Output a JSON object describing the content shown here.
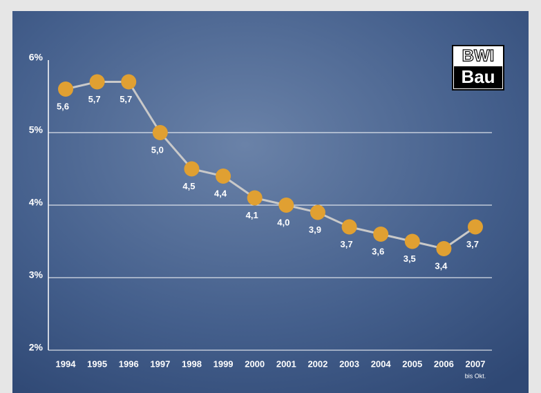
{
  "chart_data": {
    "type": "line",
    "categories": [
      "1994",
      "1995",
      "1996",
      "1997",
      "1998",
      "1999",
      "2000",
      "2001",
      "2002",
      "2003",
      "2004",
      "2005",
      "2006",
      "2007"
    ],
    "category_note": "bis Okt.",
    "values": [
      5.6,
      5.7,
      5.7,
      5.0,
      4.5,
      4.4,
      4.1,
      4.0,
      3.9,
      3.7,
      3.6,
      3.5,
      3.4,
      3.7
    ],
    "value_labels": [
      "5,6",
      "5,7",
      "5,7",
      "5,0",
      "4,5",
      "4,4",
      "4,1",
      "4,0",
      "3,9",
      "3,7",
      "3,6",
      "3,5",
      "3,4",
      "3,7"
    ],
    "color": "#e0a032",
    "line_color": "#c9c9c9",
    "ylim": [
      2,
      6
    ],
    "yticks": [
      {
        "value": 2,
        "label": "2%"
      },
      {
        "value": 3,
        "label": "3%"
      },
      {
        "value": 4,
        "label": "4%"
      },
      {
        "value": 5,
        "label": "5%"
      },
      {
        "value": 6,
        "label": "6%"
      }
    ],
    "grid": true,
    "logo": [
      "BWI",
      "Bau"
    ]
  }
}
